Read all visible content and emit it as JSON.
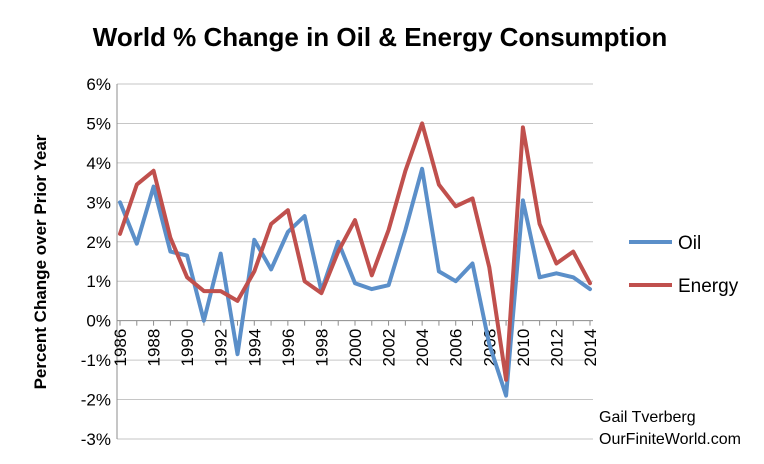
{
  "chart_data": {
    "type": "line",
    "title": "World % Change in Oil & Energy Consumption",
    "ylabel": "Percent Change over Prior Year",
    "xlabel": "",
    "ylim": [
      -3,
      6
    ],
    "y_ticks": [
      "-3%",
      "-2%",
      "-1%",
      "0%",
      "1%",
      "2%",
      "3%",
      "4%",
      "5%",
      "6%"
    ],
    "y_tick_values": [
      -3,
      -2,
      -1,
      0,
      1,
      2,
      3,
      4,
      5,
      6
    ],
    "x": [
      1986,
      1987,
      1988,
      1989,
      1990,
      1991,
      1992,
      1993,
      1994,
      1995,
      1996,
      1997,
      1998,
      1999,
      2000,
      2001,
      2002,
      2003,
      2004,
      2005,
      2006,
      2007,
      2008,
      2009,
      2010,
      2011,
      2012,
      2013,
      2014
    ],
    "x_tick_labels": [
      "1986",
      "1988",
      "1990",
      "1992",
      "1994",
      "1996",
      "1998",
      "2000",
      "2002",
      "2004",
      "2006",
      "2008",
      "2010",
      "2012",
      "2014"
    ],
    "x_tick_values": [
      1986,
      1988,
      1990,
      1992,
      1994,
      1996,
      1998,
      2000,
      2002,
      2004,
      2006,
      2008,
      2010,
      2012,
      2014
    ],
    "grid": "horizontal",
    "legend_position": "right",
    "series": [
      {
        "name": "Oil",
        "color": "#5b8fc9",
        "values": [
          3.0,
          1.95,
          3.4,
          1.75,
          1.65,
          0.0,
          1.7,
          -0.85,
          2.05,
          1.3,
          2.25,
          2.65,
          0.75,
          2.0,
          0.95,
          0.8,
          0.9,
          2.3,
          3.85,
          1.25,
          1.0,
          1.45,
          -0.6,
          -1.9,
          3.05,
          1.1,
          1.2,
          1.1,
          0.8
        ]
      },
      {
        "name": "Energy",
        "color": "#c0504d",
        "values": [
          2.2,
          3.45,
          3.8,
          2.1,
          1.1,
          0.75,
          0.75,
          0.5,
          1.25,
          2.45,
          2.8,
          1.0,
          0.7,
          1.75,
          2.55,
          1.15,
          2.3,
          3.8,
          5.0,
          3.45,
          2.9,
          3.1,
          1.35,
          -1.5,
          4.9,
          2.45,
          1.45,
          1.75,
          0.95
        ]
      }
    ],
    "annotations": [
      "Gail Tverberg",
      "OurFiniteWorld.com"
    ]
  }
}
